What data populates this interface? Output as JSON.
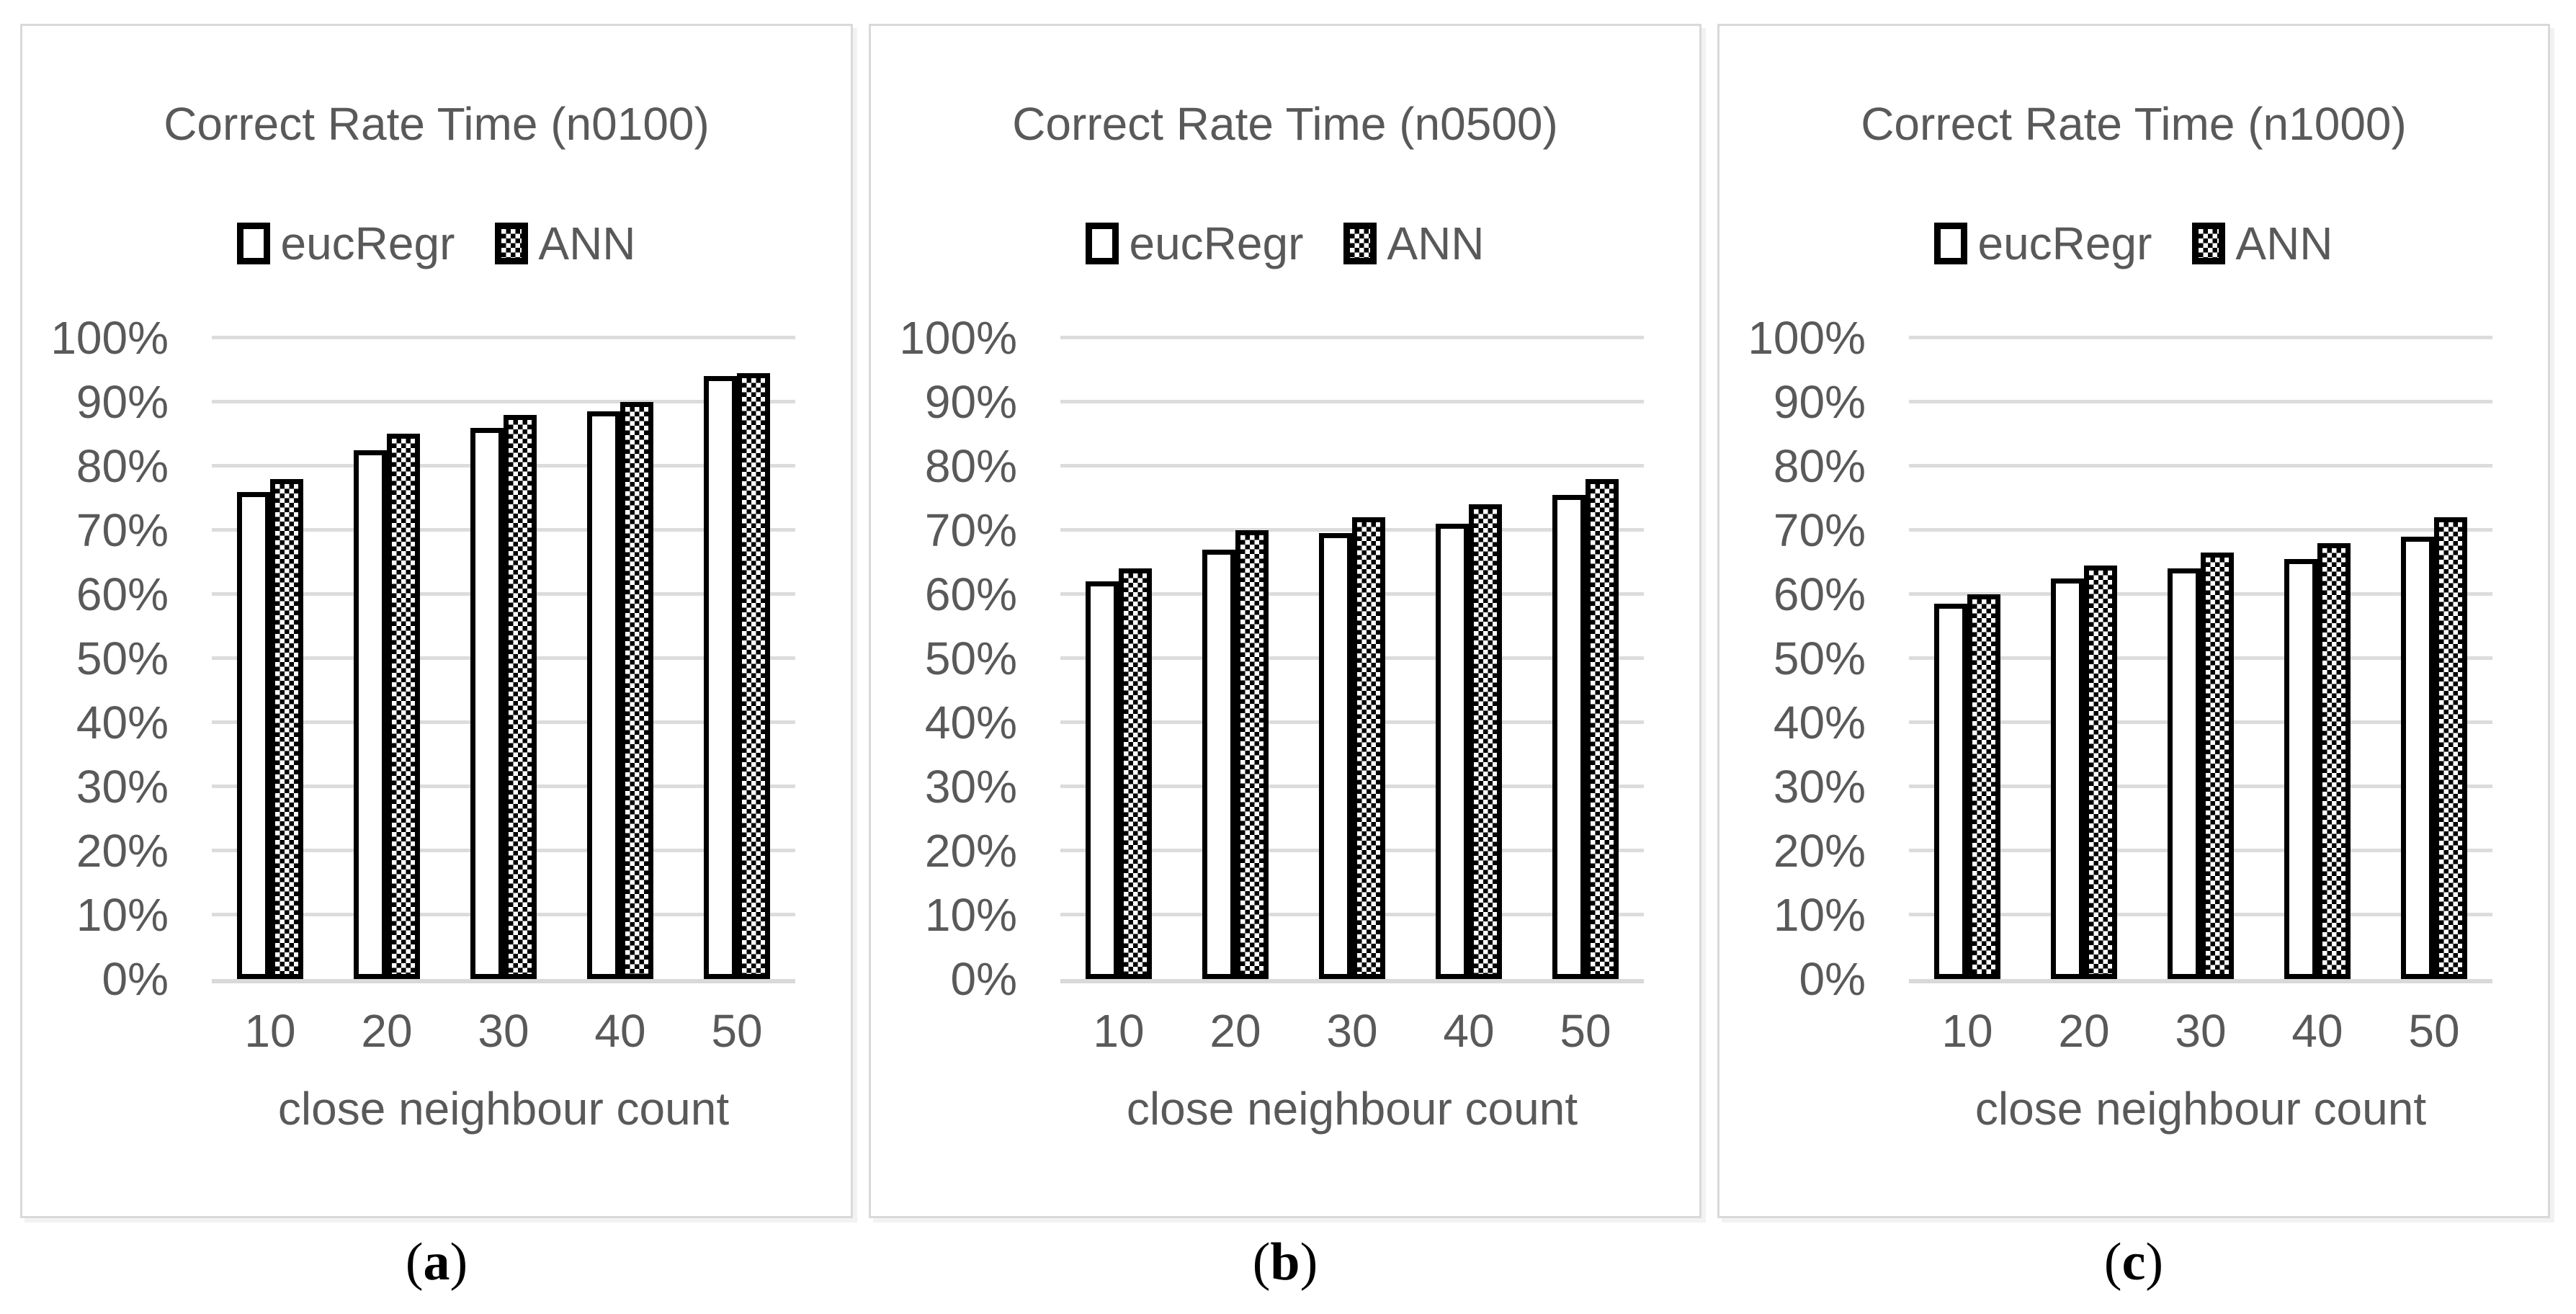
{
  "colors": {
    "text_gray": "#595959",
    "gridline": "#dcdcdc",
    "panel_border": "#d9d9d9",
    "bar_border": "#000000",
    "bar_fill_eucRegr": "#ffffff",
    "bar_fill_ANN": "black-white-checkerboard",
    "caption_color": "#000000",
    "background": "#ffffff"
  },
  "legend": {
    "items": [
      "eucRegr",
      "ANN"
    ]
  },
  "axis": {
    "yticks": [
      "0%",
      "10%",
      "20%",
      "30%",
      "40%",
      "50%",
      "60%",
      "70%",
      "80%",
      "90%",
      "100%"
    ],
    "ylim": [
      0,
      100
    ],
    "grid": true,
    "legend_position": "top"
  },
  "chart_data": [
    {
      "type": "bar",
      "title": "Correct Rate Time (n0100)",
      "xlabel": "close neighbour count",
      "caption": "(a)",
      "categories": [
        "10",
        "20",
        "30",
        "40",
        "50"
      ],
      "series": [
        {
          "name": "eucRegr",
          "values": [
            76,
            82.5,
            86,
            88.5,
            94
          ]
        },
        {
          "name": "ANN",
          "values": [
            78,
            85,
            88,
            90,
            94.5
          ]
        }
      ],
      "unit": "percent",
      "ylim": [
        0,
        100
      ]
    },
    {
      "type": "bar",
      "title": "Correct Rate Time (n0500)",
      "xlabel": "close neighbour count",
      "caption": "(b)",
      "categories": [
        "10",
        "20",
        "30",
        "40",
        "50"
      ],
      "series": [
        {
          "name": "eucRegr",
          "values": [
            62,
            67,
            69.5,
            71,
            75.5
          ]
        },
        {
          "name": "ANN",
          "values": [
            64,
            70,
            72,
            74,
            78
          ]
        }
      ],
      "unit": "percent",
      "ylim": [
        0,
        100
      ]
    },
    {
      "type": "bar",
      "title": "Correct Rate Time (n1000)",
      "xlabel": "close neighbour count",
      "caption": "(c)",
      "categories": [
        "10",
        "20",
        "30",
        "40",
        "50"
      ],
      "series": [
        {
          "name": "eucRegr",
          "values": [
            58.5,
            62.5,
            64,
            65.5,
            69
          ]
        },
        {
          "name": "ANN",
          "values": [
            60,
            64.5,
            66.5,
            68,
            72
          ]
        }
      ],
      "unit": "percent",
      "ylim": [
        0,
        100
      ]
    }
  ]
}
